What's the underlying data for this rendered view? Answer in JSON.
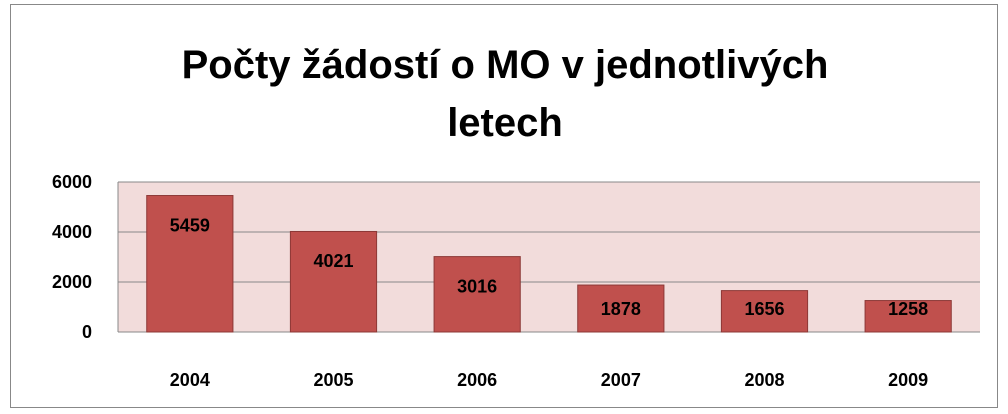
{
  "chart_data": {
    "type": "bar",
    "title": "Počty žádostí o MO v jednotlivých letech",
    "categories": [
      "2004",
      "2005",
      "2006",
      "2007",
      "2008",
      "2009"
    ],
    "values": [
      5459,
      4021,
      3016,
      1878,
      1656,
      1258
    ],
    "color": "#c0504d",
    "ylim": [
      0,
      6000
    ],
    "yticks": [
      0,
      2000,
      4000,
      6000
    ],
    "grid": true
  }
}
